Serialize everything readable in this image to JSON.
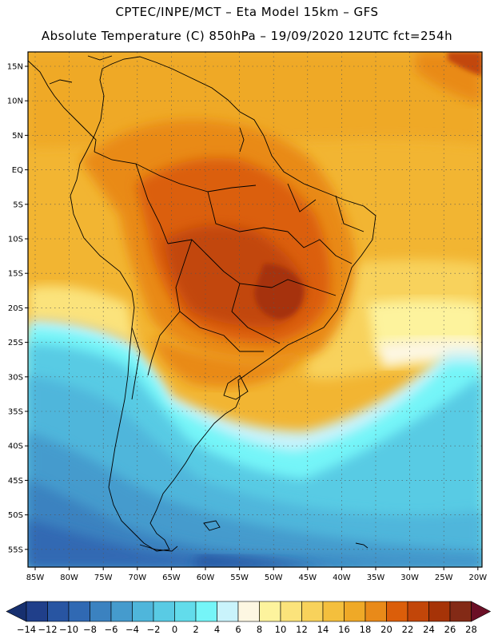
{
  "header": {
    "line1": "CPTEC/INPE/MCT –  Eta Model 15km – GFS",
    "line2": "Absolute Temperature (C) 850hPa – 19/09/2020 12UTC fct=254h"
  },
  "map": {
    "variable": "Absolute Temperature",
    "units": "C",
    "lat_labels": [
      "15N",
      "10N",
      "5N",
      "EQ",
      "5S",
      "10S",
      "15S",
      "20S",
      "25S",
      "30S",
      "35S",
      "40S",
      "45S",
      "50S",
      "55S"
    ],
    "lon_labels": [
      "85W",
      "80W",
      "75W",
      "70W",
      "65W",
      "60W",
      "55W",
      "50W",
      "45W",
      "40W",
      "35W",
      "30W",
      "25W",
      "20W"
    ]
  },
  "colorbar": {
    "levels": [
      "-14",
      "-12",
      "-10",
      "-8",
      "-6",
      "-4",
      "-2",
      "0",
      "2",
      "4",
      "6",
      "8",
      "10",
      "12",
      "14",
      "16",
      "18",
      "20",
      "22",
      "24",
      "26",
      "28"
    ],
    "colors": [
      "#17306f",
      "#203f8a",
      "#2855a2",
      "#3069b3",
      "#3b82c0",
      "#459bcd",
      "#4fb6db",
      "#59cbe4",
      "#62dceb",
      "#75f5f8",
      "#c9f3fb",
      "#fdf7e2",
      "#fdf39d",
      "#fbe37b",
      "#f8d25b",
      "#f4bf3d",
      "#efa927",
      "#e98a19",
      "#db5e0a",
      "#c24609",
      "#a63307",
      "#832a16",
      "#6b0f26"
    ]
  }
}
